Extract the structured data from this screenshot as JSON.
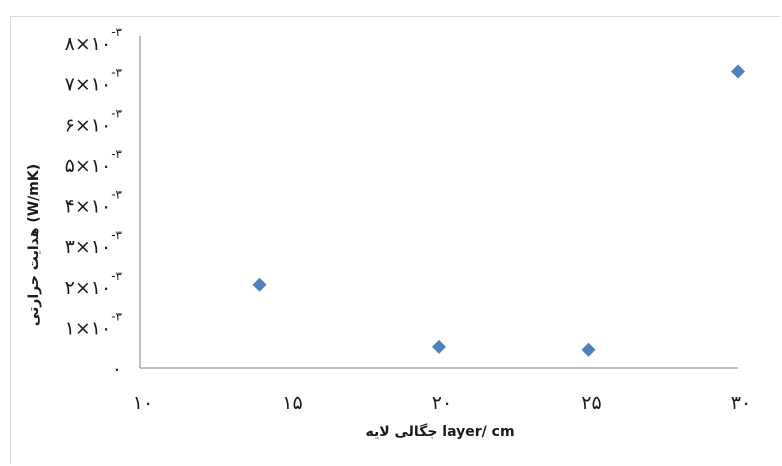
{
  "chart_data": {
    "type": "scatter",
    "title": "",
    "xlabel": "جگالی لایه layer/ cm",
    "ylabel": "هدایت حرارتی (W/mK)",
    "x_ticks": [
      "۱۰",
      "۱۵",
      "۲۰",
      "۲۵",
      "۳۰"
    ],
    "x_tick_values": [
      10,
      15,
      20,
      25,
      30
    ],
    "y_ticks": [
      {
        "value": 0,
        "mantissa": "۰",
        "power": ""
      },
      {
        "value": 0.001,
        "mantissa": "۱×۱۰",
        "power": "-۳"
      },
      {
        "value": 0.002,
        "mantissa": "۲×۱۰",
        "power": "-۳"
      },
      {
        "value": 0.003,
        "mantissa": "۳×۱۰",
        "power": "-۳"
      },
      {
        "value": 0.004,
        "mantissa": "۴×۱۰",
        "power": "-۳"
      },
      {
        "value": 0.005,
        "mantissa": "۵×۱۰",
        "power": "-۳"
      },
      {
        "value": 0.006,
        "mantissa": "۶×۱۰",
        "power": "-۳"
      },
      {
        "value": 0.007,
        "mantissa": "۷×۱۰",
        "power": "-۳"
      },
      {
        "value": 0.008,
        "mantissa": "۸×۱۰",
        "power": "-۳"
      }
    ],
    "xlim": [
      10,
      30
    ],
    "ylim": [
      0,
      0.008
    ],
    "grid": false,
    "series": [
      {
        "color": "#4f81bd",
        "marker": "diamond",
        "points": [
          {
            "x": 14,
            "y": 0.00205
          },
          {
            "x": 20,
            "y": 0.00052
          },
          {
            "x": 25,
            "y": 0.00045
          },
          {
            "x": 30,
            "y": 0.0073
          }
        ]
      }
    ]
  }
}
